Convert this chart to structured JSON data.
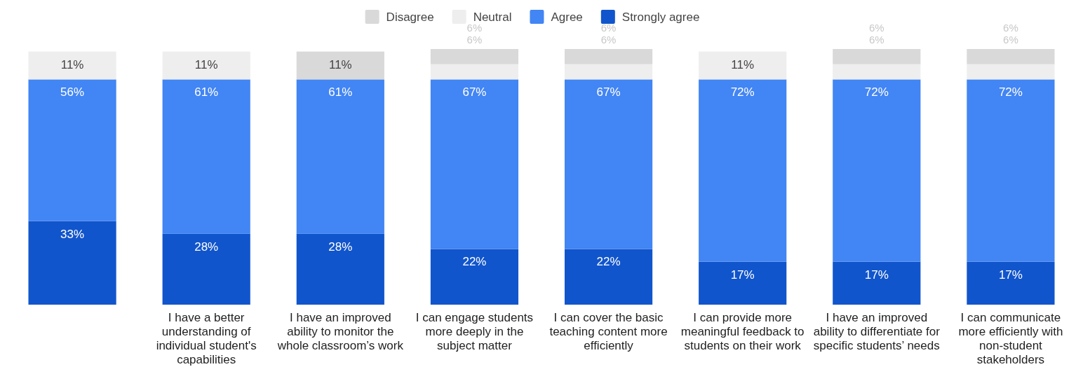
{
  "chart_data": {
    "type": "bar",
    "stacked": true,
    "legend": "top",
    "categories": [
      null,
      "I have a better understanding of individual student's capabilities",
      "I have an improved ability to monitor the whole classroom’s work",
      "I can engage students more deeply in the subject matter",
      "I can cover the basic teaching content more efficiently",
      "I can provide more meaningful feedback to students on their work",
      "I have an improved ability to differentiate for specific students’ needs",
      "I can communicate more efficiently with non-student stakeholders"
    ],
    "series": [
      {
        "name": "Strongly agree",
        "color": "#1155cc",
        "values": [
          33,
          28,
          28,
          22,
          22,
          17,
          17,
          17
        ],
        "value_labels": [
          "33%",
          "28%",
          "28%",
          "22%",
          "22%",
          "17%",
          "17%",
          "17%"
        ]
      },
      {
        "name": "Agree",
        "color": "#4285f4",
        "values": [
          56,
          61,
          61,
          67,
          67,
          72,
          72,
          72
        ],
        "value_labels": [
          "56%",
          "61%",
          "61%",
          "67%",
          "67%",
          "72%",
          "72%",
          "72%"
        ]
      },
      {
        "name": "Neutral",
        "color": "#eeeeee",
        "values": [
          11,
          11,
          0,
          6,
          6,
          11,
          6,
          6
        ],
        "value_labels": [
          "11%",
          "11%",
          null,
          "6%",
          "6%",
          "11%",
          "6%",
          "6%"
        ]
      },
      {
        "name": "Disagree",
        "color": "#d9d9d9",
        "values": [
          0,
          0,
          11,
          6,
          6,
          0,
          6,
          6
        ],
        "value_labels": [
          null,
          null,
          "11%",
          "6%",
          "6%",
          null,
          "6%",
          "6%"
        ]
      }
    ]
  }
}
